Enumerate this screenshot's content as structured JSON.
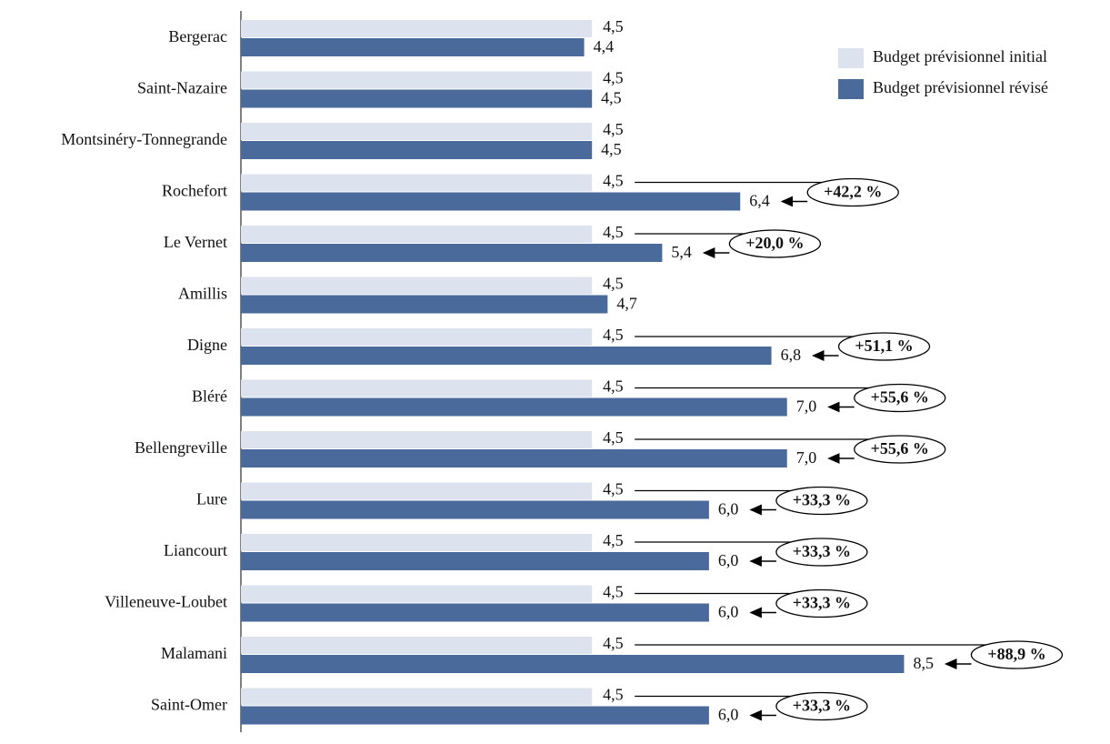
{
  "chart_data": {
    "type": "bar",
    "orientation": "horizontal",
    "categories": [
      "Bergerac",
      "Saint-Nazaire",
      "Montsinéry-Tonnegrande",
      "Rochefort",
      "Le Vernet",
      "Amillis",
      "Digne",
      "Bléré",
      "Bellengreville",
      "Lure",
      "Liancourt",
      "Villeneuve-Loubet",
      "Malamani",
      "Saint-Omer"
    ],
    "series": [
      {
        "name": "Budget prévisionnel initial",
        "color": "#dde3ee",
        "values": [
          4.5,
          4.5,
          4.5,
          4.5,
          4.5,
          4.5,
          4.5,
          4.5,
          4.5,
          4.5,
          4.5,
          4.5,
          4.5,
          4.5
        ],
        "value_labels": [
          "4,5",
          "4,5",
          "4,5",
          "4,5",
          "4,5",
          "4,5",
          "4,5",
          "4,5",
          "4,5",
          "4,5",
          "4,5",
          "4,5",
          "4,5",
          "4,5"
        ]
      },
      {
        "name": "Budget prévisionnel révisé",
        "color": "#4a6a9c",
        "values": [
          4.4,
          4.5,
          4.5,
          6.4,
          5.4,
          4.7,
          6.8,
          7.0,
          7.0,
          6.0,
          6.0,
          6.0,
          8.5,
          6.0
        ],
        "value_labels": [
          "4,4",
          "4,5",
          "4,5",
          "6,4",
          "5,4",
          "4,7",
          "6,8",
          "7,0",
          "7,0",
          "6,0",
          "6,0",
          "6,0",
          "8,5",
          "6,0"
        ]
      }
    ],
    "annotations": [
      null,
      null,
      null,
      "+42,2 %",
      "+20,0 %",
      null,
      "+51,1 %",
      "+55,6 %",
      "+55,6 %",
      "+33,3 %",
      "+33,3 %",
      "+33,3 %",
      "+88,9 %",
      "+33,3 %"
    ],
    "xlim": [
      0,
      11
    ],
    "legend": "upper right"
  }
}
